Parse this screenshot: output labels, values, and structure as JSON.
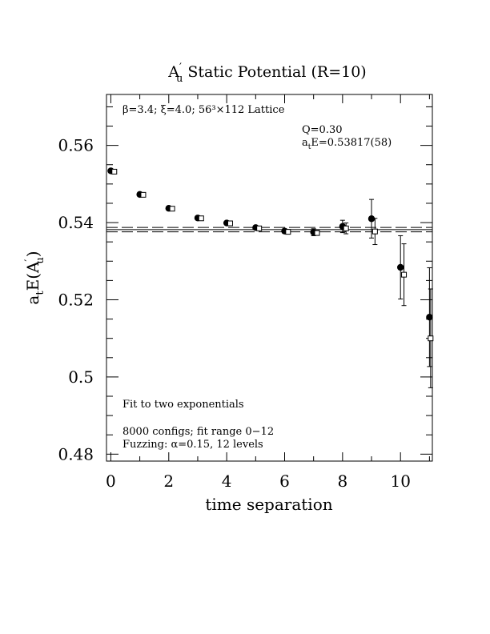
{
  "chart_data": {
    "type": "scatter",
    "title": {
      "main": "A",
      "sup": "′",
      "sub": "u",
      "rest": " Static Potential (R=10)"
    },
    "xlabel": "time separation",
    "ylabel": {
      "prefix": "a",
      "prefix_sub": "t",
      "mid": "E(A",
      "sup": "′",
      "sub": "u",
      "end": ")"
    },
    "xlim": [
      -0.15,
      11.1
    ],
    "ylim": [
      0.4782,
      0.5732
    ],
    "x_ticks": [
      0,
      2,
      4,
      6,
      8,
      10
    ],
    "x_tick_labels": [
      "0",
      "2",
      "4",
      "6",
      "8",
      "10"
    ],
    "y_ticks": [
      0.48,
      0.5,
      0.52,
      0.54,
      0.56
    ],
    "y_tick_labels": [
      "0.48",
      "0.5",
      "0.52",
      "0.54",
      "0.56"
    ],
    "grid": false,
    "series": [
      {
        "marker": "filled-circle",
        "x": [
          0,
          1,
          2,
          3,
          4,
          5,
          6,
          7,
          8,
          9,
          10,
          11
        ],
        "y": [
          0.5534,
          0.5473,
          0.5437,
          0.5412,
          0.5399,
          0.5387,
          0.5378,
          0.5375,
          0.539,
          0.541,
          0.5284,
          0.5155
        ],
        "err": [
          0.0003,
          0.0003,
          0.0003,
          0.0003,
          0.0003,
          0.0003,
          0.0006,
          0.0009,
          0.0016,
          0.005,
          0.0082,
          0.0128
        ]
      },
      {
        "marker": "open-square",
        "x": [
          0.12,
          1.12,
          2.12,
          3.12,
          4.12,
          5.12,
          6.12,
          7.12,
          8.12,
          9.12,
          10.12,
          11.04
        ],
        "y": [
          0.5532,
          0.5472,
          0.5436,
          0.5411,
          0.5398,
          0.5385,
          0.5376,
          0.5373,
          0.5385,
          0.5377,
          0.5265,
          0.51
        ],
        "err": [
          0.0003,
          0.0003,
          0.0003,
          0.0003,
          0.0003,
          0.0003,
          0.0004,
          0.0006,
          0.0014,
          0.0034,
          0.008,
          0.0128
        ]
      }
    ],
    "fit": {
      "value": 0.53817,
      "error": 0.00058,
      "style": "solid center, dashed error band"
    },
    "annotations": {
      "lattice": "β=3.4; ξ=4.0; 56³×112 Lattice",
      "q": "Q=0.30",
      "energy_prefix": "a",
      "energy_sub": "t",
      "energy_rest": "E=0.53817(58)",
      "fit_method": "Fit to two exponentials",
      "configs": "8000 configs; fit range 0−12",
      "fuzzing": "Fuzzing: α=0.15, 12 levels"
    }
  }
}
